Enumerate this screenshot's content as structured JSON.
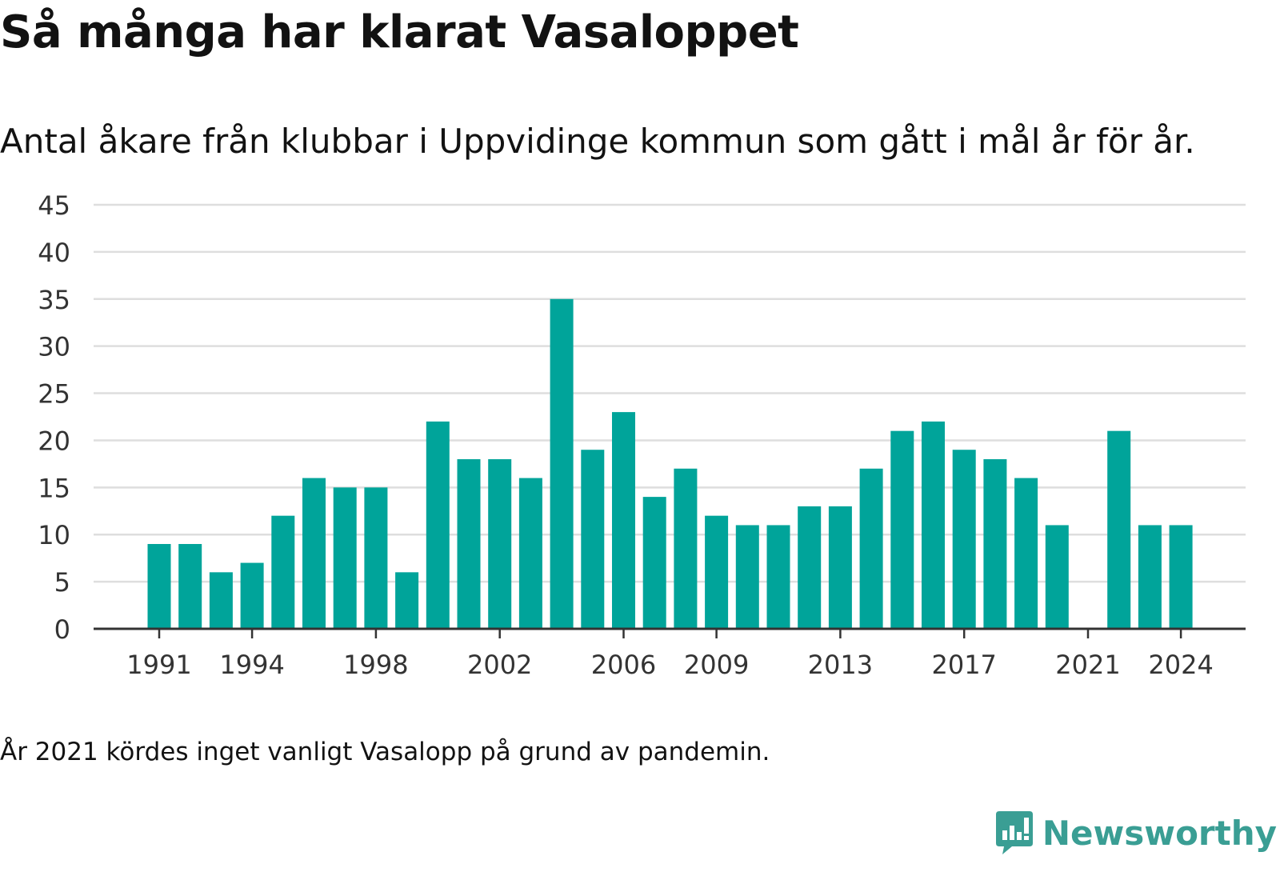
{
  "header": {
    "title": "Så många har klarat Vasaloppet",
    "subtitle": "Antal åkare från klubbar i Uppvidinge kommun som gått i mål år för år."
  },
  "footer": {
    "note": "År 2021 kördes inget vanligt Vasalopp på grund av pandemin.",
    "brand": "Newsworthy"
  },
  "colors": {
    "bar": "#00a49a",
    "grid": "#dedede",
    "axis": "#333333",
    "brand": "#3a9e94"
  },
  "icons": {
    "brand_logo": "newsworthy-logo-icon"
  },
  "chart_data": {
    "type": "bar",
    "categories": [
      "1991",
      "1992",
      "1993",
      "1994",
      "1995",
      "1996",
      "1997",
      "1998",
      "1999",
      "2000",
      "2001",
      "2002",
      "2003",
      "2004",
      "2005",
      "2006",
      "2007",
      "2008",
      "2009",
      "2010",
      "2011",
      "2012",
      "2013",
      "2014",
      "2015",
      "2016",
      "2017",
      "2018",
      "2019",
      "2020",
      "2021",
      "2022",
      "2023",
      "2024"
    ],
    "values": [
      9,
      9,
      6,
      7,
      12,
      16,
      15,
      15,
      6,
      22,
      18,
      18,
      16,
      35,
      19,
      23,
      14,
      17,
      12,
      11,
      11,
      13,
      13,
      17,
      21,
      22,
      19,
      18,
      16,
      11,
      null,
      21,
      11,
      11
    ],
    "xticks": [
      "1991",
      "1994",
      "1998",
      "2002",
      "2006",
      "2009",
      "2013",
      "2017",
      "2021",
      "2024"
    ],
    "yticks": [
      0,
      5,
      10,
      15,
      20,
      25,
      30,
      35,
      40,
      45
    ],
    "ylim": [
      0,
      45
    ],
    "grid": true,
    "legend": "none"
  }
}
